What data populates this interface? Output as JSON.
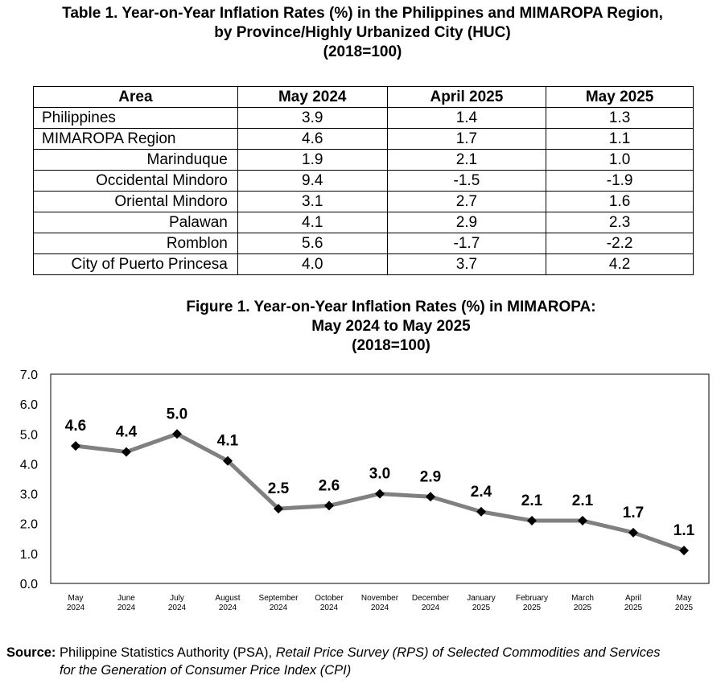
{
  "table": {
    "title_lines": [
      "Table 1. Year-on-Year Inflation Rates (%) in the Philippines and MIMAROPA Region,",
      "by Province/Highly Urbanized City (HUC)",
      "(2018=100)"
    ],
    "headers": [
      "Area",
      "May 2024",
      "April 2025",
      "May 2025"
    ],
    "rows": [
      {
        "area": "Philippines",
        "values": [
          "3.9",
          "1.4",
          "1.3"
        ]
      },
      {
        "area": "MIMAROPA Region",
        "values": [
          "4.6",
          "1.7",
          "1.1"
        ]
      },
      {
        "area": "Marinduque",
        "values": [
          "1.9",
          "2.1",
          "1.0"
        ]
      },
      {
        "area": "Occidental Mindoro",
        "values": [
          "9.4",
          "-1.5",
          "-1.9"
        ]
      },
      {
        "area": "Oriental Mindoro",
        "values": [
          "3.1",
          "2.7",
          "1.6"
        ]
      },
      {
        "area": "Palawan",
        "values": [
          "4.1",
          "2.9",
          "2.3"
        ]
      },
      {
        "area": "Romblon",
        "values": [
          "5.6",
          "-1.7",
          "-2.2"
        ]
      },
      {
        "area": "City of Puerto Princesa",
        "values": [
          "4.0",
          "3.7",
          "4.2"
        ]
      }
    ]
  },
  "chart_data": {
    "type": "line",
    "title_lines": [
      "Figure 1. Year-on-Year Inflation Rates (%) in MIMAROPA:",
      "May 2024 to May 2025",
      "(2018=100)"
    ],
    "categories": [
      [
        "May",
        "2024"
      ],
      [
        "June",
        "2024"
      ],
      [
        "July",
        "2024"
      ],
      [
        "August",
        "2024"
      ],
      [
        "September",
        "2024"
      ],
      [
        "October",
        "2024"
      ],
      [
        "November",
        "2024"
      ],
      [
        "December",
        "2024"
      ],
      [
        "January",
        "2025"
      ],
      [
        "February",
        "2025"
      ],
      [
        "March",
        "2025"
      ],
      [
        "April",
        "2025"
      ],
      [
        "May",
        "2025"
      ]
    ],
    "values": [
      4.6,
      4.4,
      5.0,
      4.1,
      2.5,
      2.6,
      3.0,
      2.9,
      2.4,
      2.1,
      2.1,
      1.7,
      1.1
    ],
    "ylim": [
      0,
      7
    ],
    "yticks": [
      "0.0",
      "1.0",
      "2.0",
      "3.0",
      "4.0",
      "5.0",
      "6.0",
      "7.0"
    ],
    "grid": false,
    "legend": "none",
    "line_color": "#808080",
    "marker_color": "#000000"
  },
  "source": {
    "label": "Source:",
    "agency": " Philippine Statistics Authority (PSA), ",
    "survey_line1": "Retail Price Survey (RPS) of Selected Commodities and Services",
    "survey_line2": "for the Generation of Consumer Price Index (CPI)"
  }
}
